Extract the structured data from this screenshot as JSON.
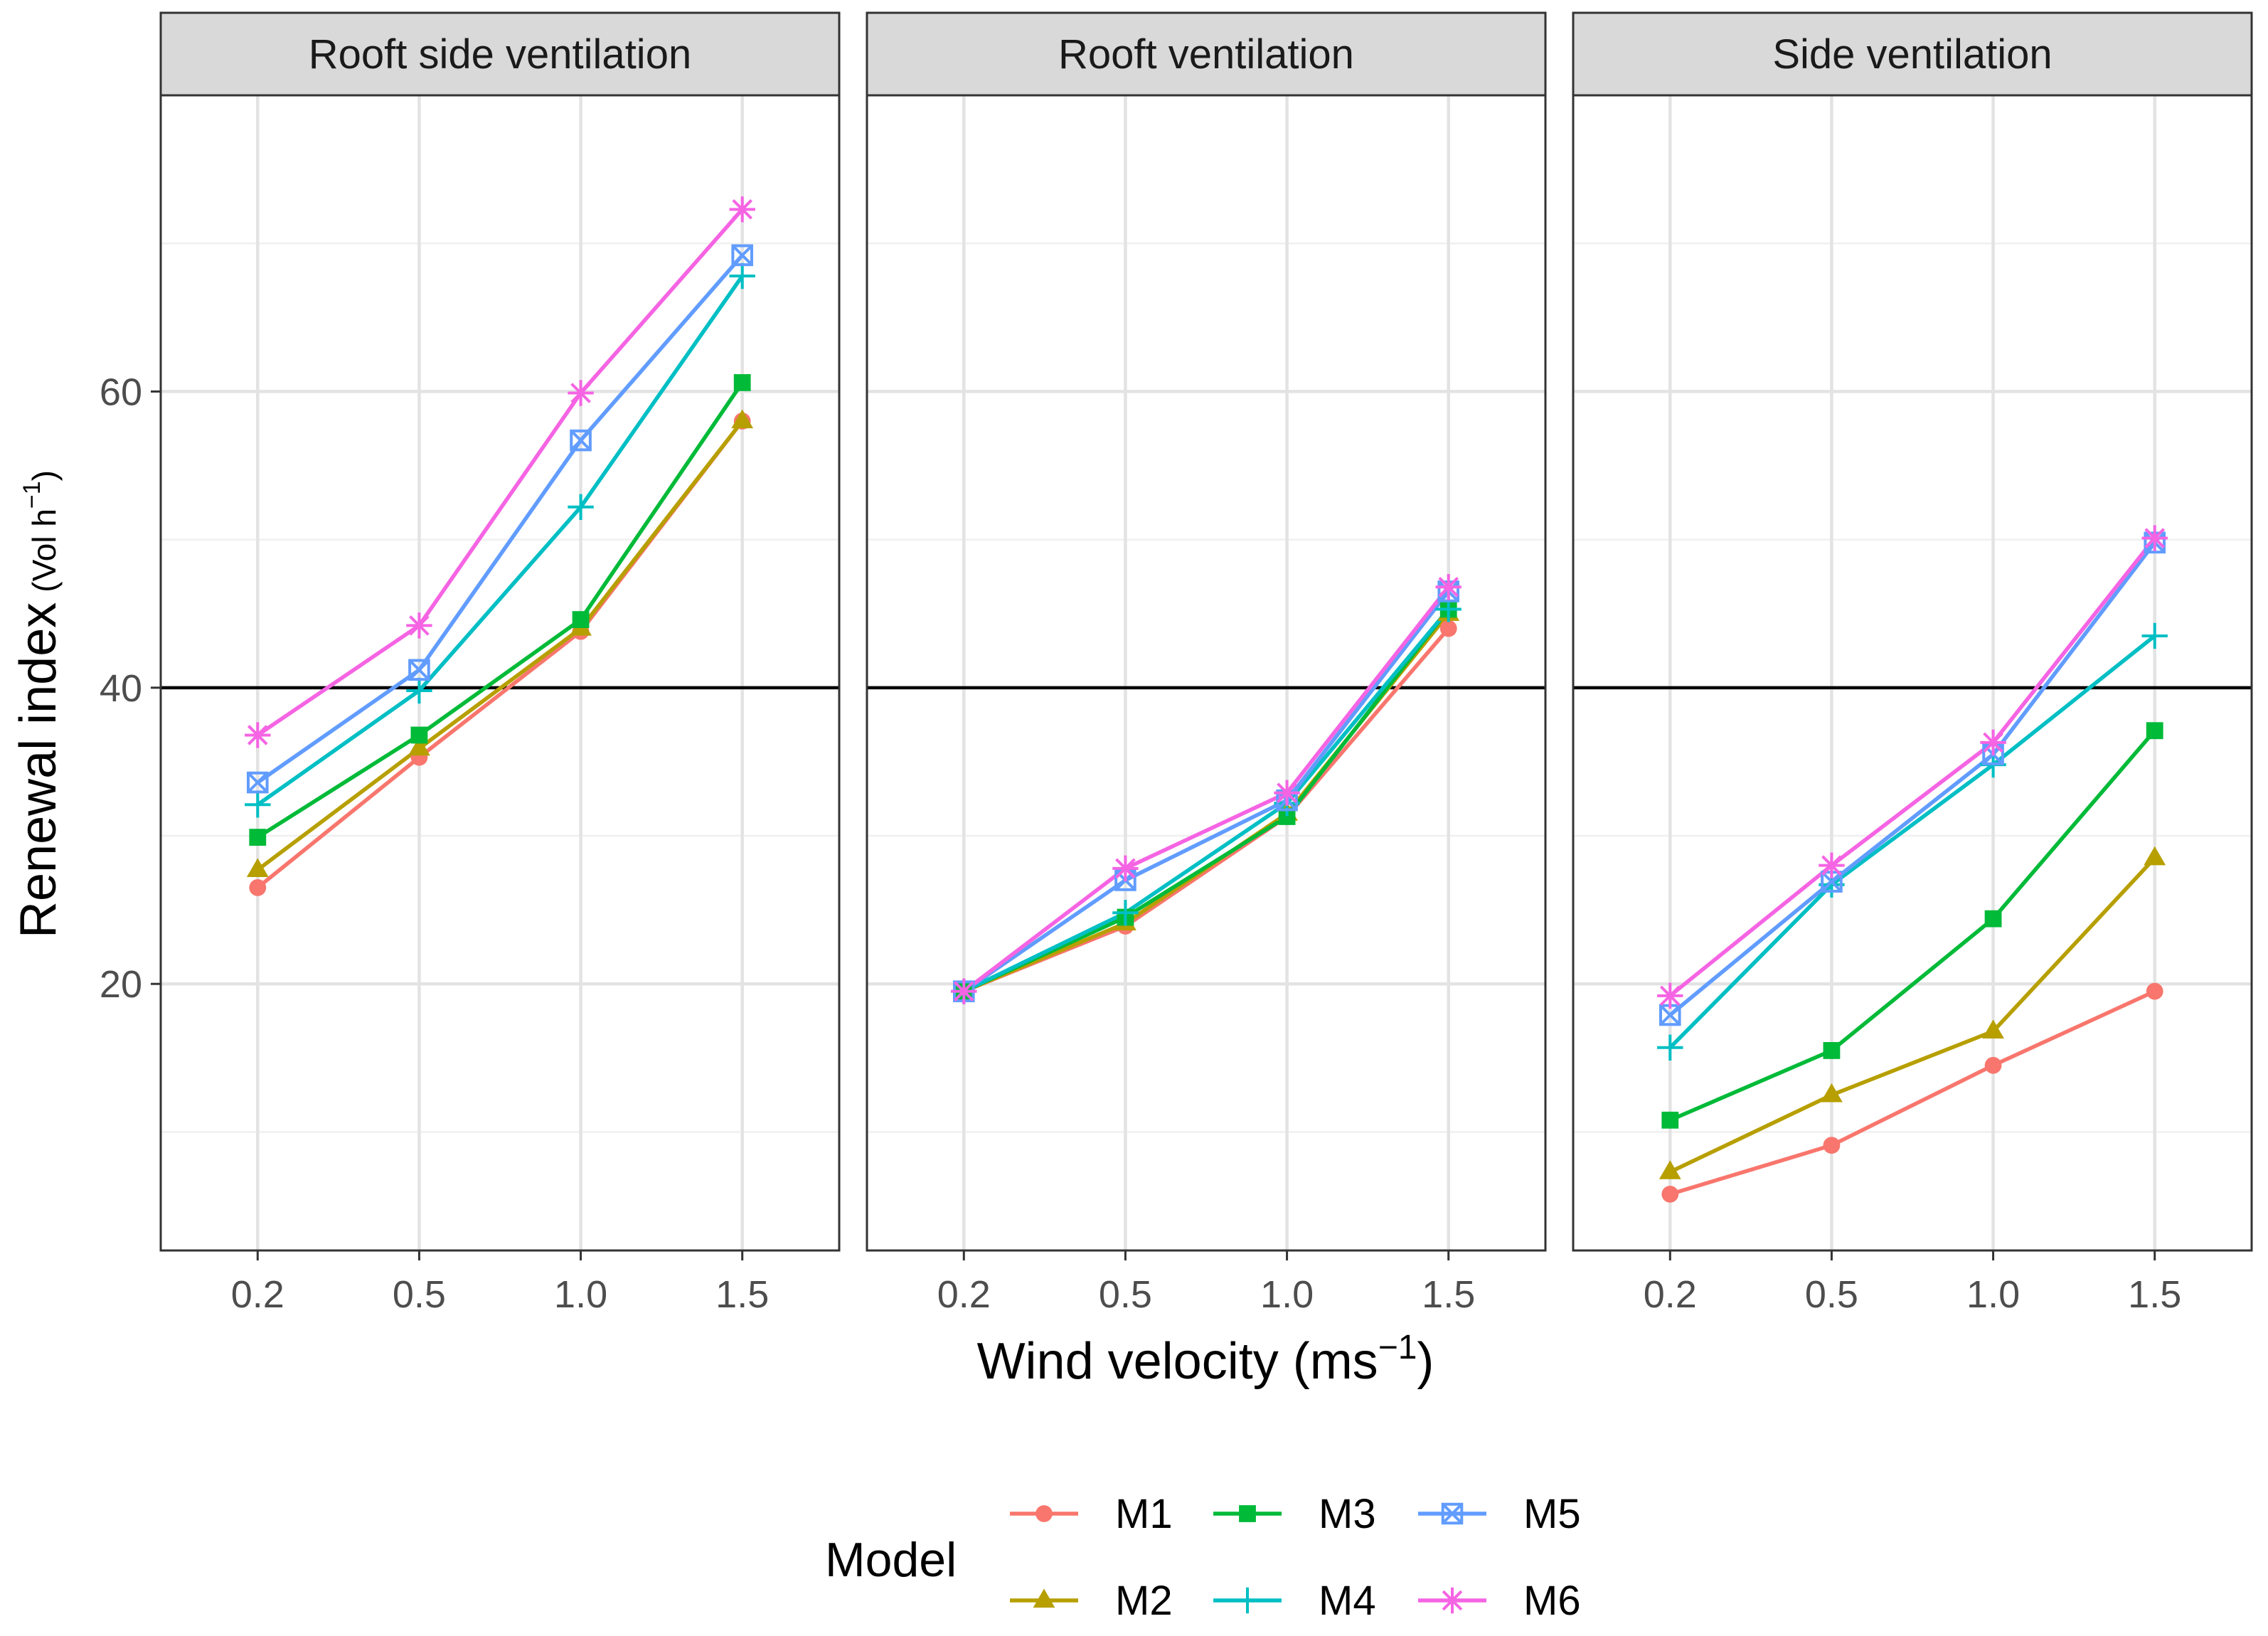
{
  "chart_data": {
    "type": "line",
    "facet_by": "Ventilation type",
    "panels": [
      {
        "title": "Rooft side ventilation",
        "series": [
          {
            "name": "M1",
            "values": [
              26.5,
              35.3,
              43.8,
              58.0
            ]
          },
          {
            "name": "M2",
            "values": [
              27.7,
              35.9,
              44.0,
              58.0
            ]
          },
          {
            "name": "M3",
            "values": [
              29.9,
              36.8,
              44.6,
              60.6
            ]
          },
          {
            "name": "M4",
            "values": [
              32.1,
              39.8,
              52.2,
              67.8
            ]
          },
          {
            "name": "M5",
            "values": [
              33.6,
              41.2,
              56.7,
              69.2
            ]
          },
          {
            "name": "M6",
            "values": [
              36.8,
              44.2,
              59.9,
              72.3
            ]
          }
        ]
      },
      {
        "title": "Rooft ventilation",
        "series": [
          {
            "name": "M1",
            "values": [
              19.5,
              23.9,
              31.3,
              44.0
            ]
          },
          {
            "name": "M2",
            "values": [
              19.5,
              24.1,
              31.5,
              45.0
            ]
          },
          {
            "name": "M3",
            "values": [
              19.5,
              24.5,
              31.3,
              45.3
            ]
          },
          {
            "name": "M4",
            "values": [
              19.5,
              24.8,
              32.2,
              45.3
            ]
          },
          {
            "name": "M5",
            "values": [
              19.5,
              27.0,
              32.4,
              46.5
            ]
          },
          {
            "name": "M6",
            "values": [
              19.5,
              27.8,
              32.9,
              46.8
            ]
          }
        ]
      },
      {
        "title": "Side ventilation",
        "series": [
          {
            "name": "M1",
            "values": [
              5.8,
              9.1,
              14.5,
              19.5
            ]
          },
          {
            "name": "M2",
            "values": [
              7.3,
              12.5,
              16.8,
              28.5
            ]
          },
          {
            "name": "M3",
            "values": [
              10.8,
              15.5,
              24.4,
              37.1
            ]
          },
          {
            "name": "M4",
            "values": [
              15.7,
              26.7,
              34.8,
              43.5
            ]
          },
          {
            "name": "M5",
            "values": [
              17.9,
              26.9,
              35.5,
              49.8
            ]
          },
          {
            "name": "M6",
            "values": [
              19.2,
              28.0,
              36.3,
              50.1
            ]
          }
        ]
      }
    ],
    "categories": [
      "0.2",
      "0.5",
      "1.0",
      "1.5"
    ],
    "ylim": [
      2,
      80
    ],
    "y_ticks": [
      20,
      40,
      60
    ],
    "y_minor": [
      10,
      30,
      50,
      70
    ],
    "reference_line": 40,
    "xlabel": {
      "main": "Wind velocity (ms",
      "sup": "−1",
      "tail": ")"
    },
    "ylabel": {
      "main": "Renewal index",
      "paren_open": "(Vol h",
      "sup": "−1",
      "paren_close": ")"
    },
    "grid": true,
    "legend": {
      "title": "Model",
      "position": "bottom",
      "items": [
        {
          "name": "M1",
          "color": "#F8766D",
          "shape": "circle"
        },
        {
          "name": "M2",
          "color": "#B79F00",
          "shape": "triangle"
        },
        {
          "name": "M3",
          "color": "#00BA38",
          "shape": "square"
        },
        {
          "name": "M4",
          "color": "#00BFC4",
          "shape": "plus"
        },
        {
          "name": "M5",
          "color": "#619CFF",
          "shape": "square-cross"
        },
        {
          "name": "M6",
          "color": "#F564E3",
          "shape": "asterisk"
        }
      ]
    }
  }
}
